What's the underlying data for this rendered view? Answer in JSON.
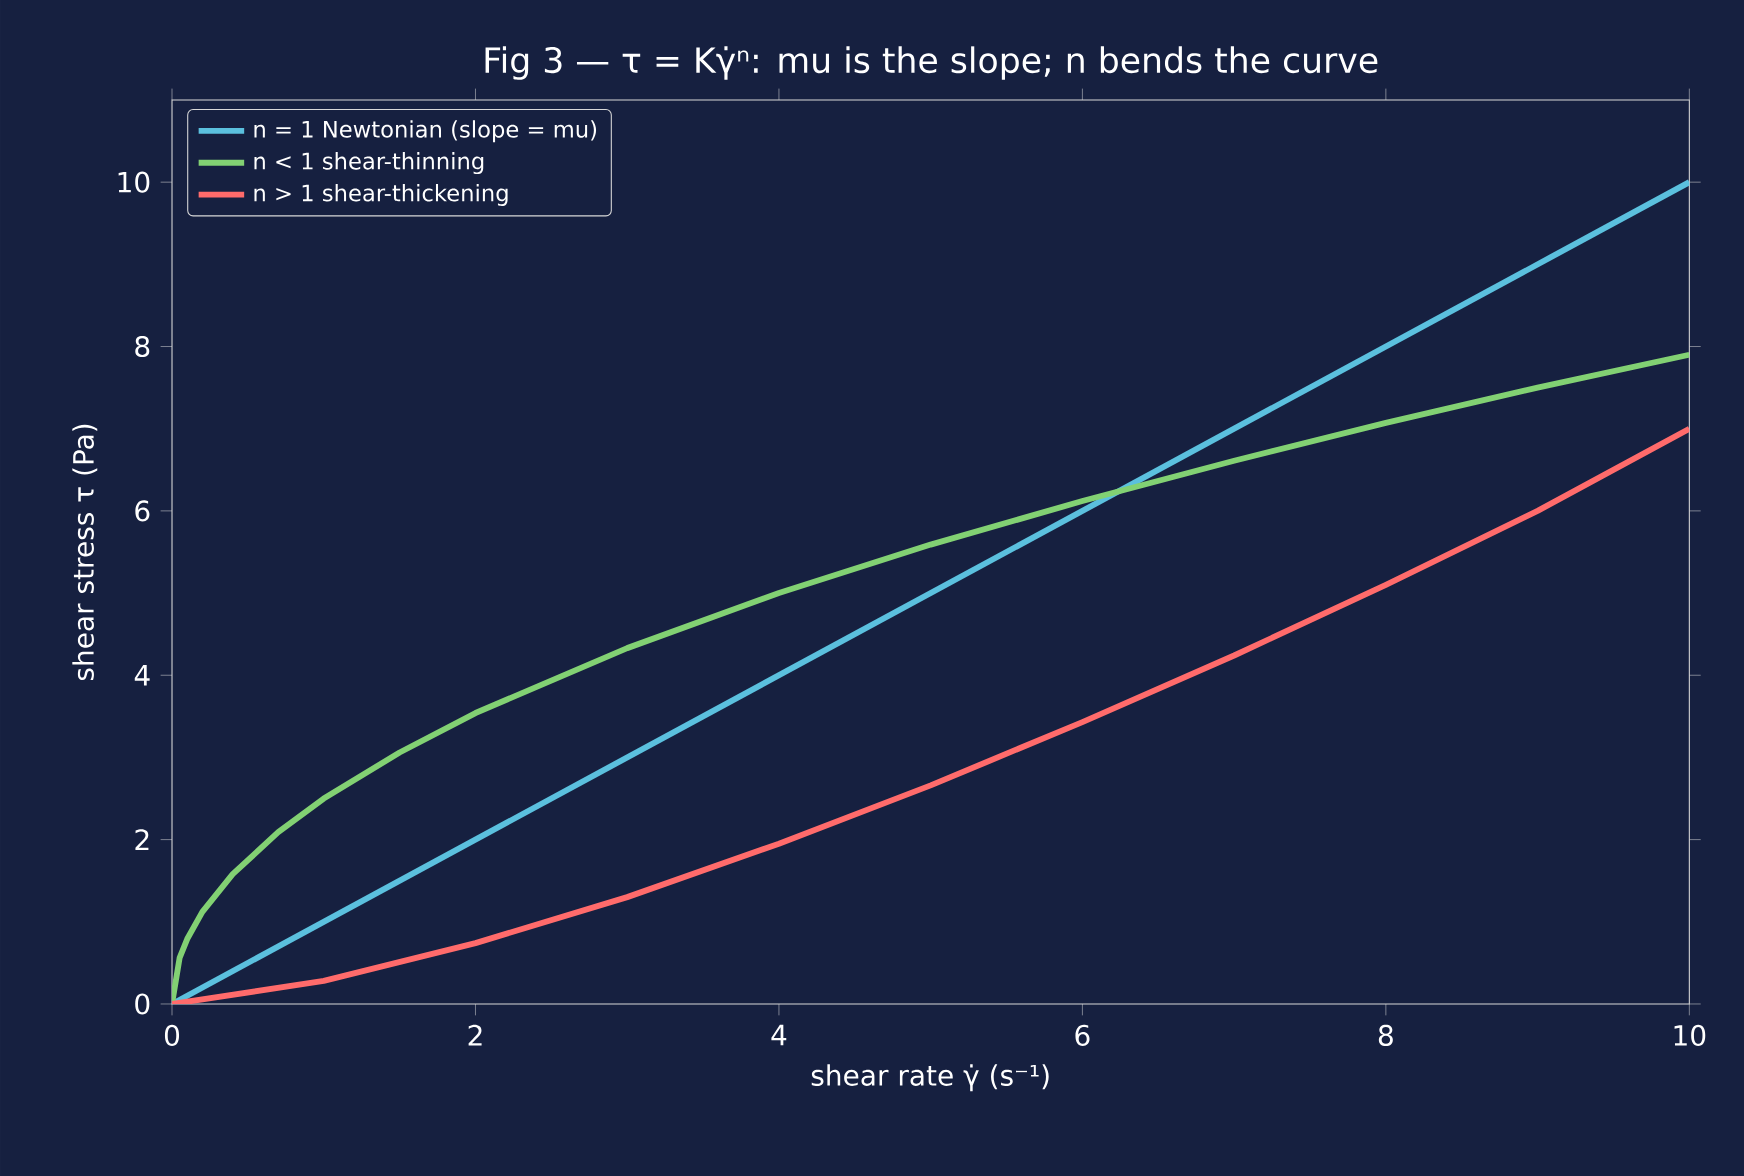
{
  "chart_data": {
    "type": "line",
    "title": "Fig 3 — τ = Kγ̇ⁿ: mu is the slope; n bends the curve",
    "xlabel": "shear rate  γ̇  (s⁻¹)",
    "ylabel": "shear stress  τ  (Pa)",
    "xlim": [
      0,
      10
    ],
    "ylim": [
      0,
      11
    ],
    "xticks": [
      0,
      2,
      4,
      6,
      8,
      10
    ],
    "yticks": [
      0,
      2,
      4,
      6,
      8,
      10
    ],
    "grid": false,
    "legend": "top left",
    "marker": "none",
    "line_style": "solid",
    "series": [
      {
        "name": "n = 1  Newtonian (slope = mu)",
        "color": "#5bc0de",
        "x": [
          0,
          10
        ],
        "values": [
          0,
          10
        ]
      },
      {
        "name": "n < 1  shear-thinning",
        "color": "#82d173",
        "x": [
          0,
          0.05,
          0.1,
          0.2,
          0.4,
          0.7,
          1,
          1.5,
          2,
          3,
          4,
          5,
          6,
          7,
          8,
          9,
          10
        ],
        "values": [
          0,
          0.56,
          0.79,
          1.12,
          1.58,
          2.09,
          2.5,
          3.06,
          3.54,
          4.33,
          5.0,
          5.59,
          6.12,
          6.61,
          7.07,
          7.5,
          7.9
        ]
      },
      {
        "name": "n > 1  shear-thickening",
        "color": "#ff6b6b",
        "x": [
          0,
          1,
          2,
          3,
          4,
          5,
          6,
          7,
          8,
          9,
          10
        ],
        "values": [
          0,
          0.28,
          0.74,
          1.3,
          1.95,
          2.66,
          3.43,
          4.24,
          5.1,
          6.0,
          7.0
        ]
      }
    ]
  }
}
